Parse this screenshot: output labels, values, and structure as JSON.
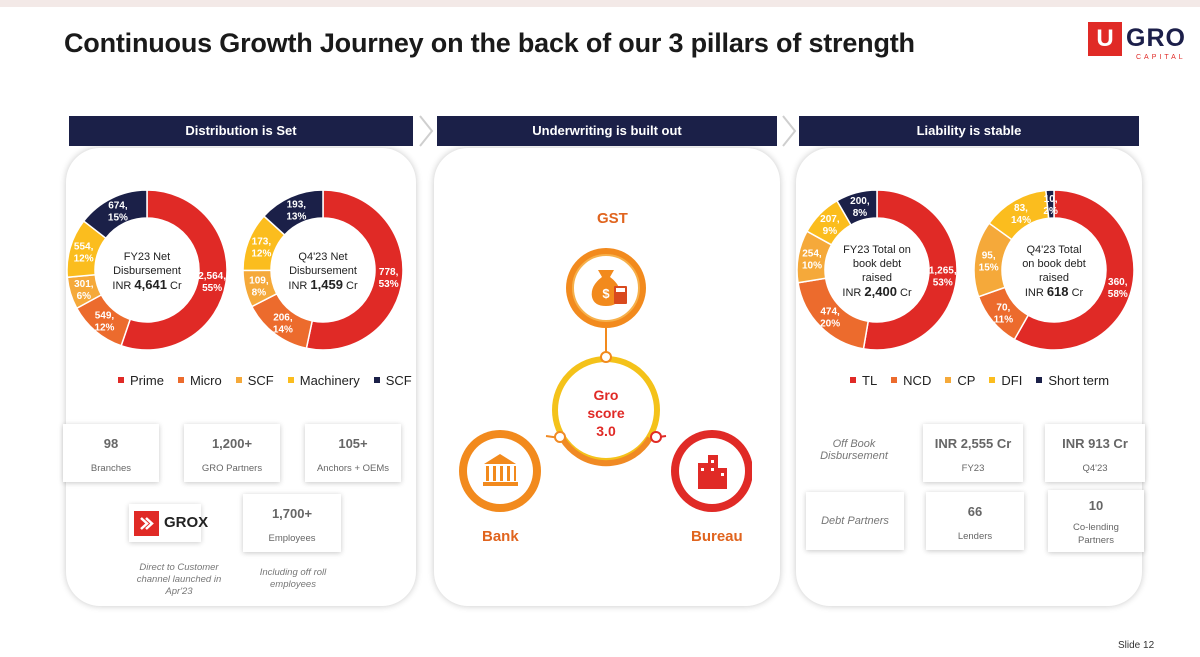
{
  "title": "Continuous Growth Journey on the back of our 3 pillars of strength",
  "logo": {
    "u": "U",
    "gro": "GRO",
    "capital": "CAPITAL"
  },
  "slide_number": "Slide 12",
  "colors": {
    "red": "#e02a26",
    "orange": "#ec6b2d",
    "light_orange": "#f5a93a",
    "yellow": "#fbbd1e",
    "navy": "#1b2048"
  },
  "pillars": [
    {
      "header": "Distribution is Set"
    },
    {
      "header": "Underwriting is built out"
    },
    {
      "header": "Liability is stable"
    }
  ],
  "chart_data": [
    {
      "type": "pie",
      "variant": "donut",
      "center_lines": [
        "FY23 Net",
        "Disbursement"
      ],
      "center_prefix": "INR ",
      "center_value": "4,641",
      "center_suffix": " Cr",
      "slices": [
        {
          "label": "Prime",
          "value": 2564,
          "text": "2,564,",
          "pct": "55%",
          "color": "#e02a26"
        },
        {
          "label": "Micro",
          "value": 549,
          "text": "549,",
          "pct": "12%",
          "color": "#ec6b2d"
        },
        {
          "label": "SCF",
          "value": 301,
          "text": "301,",
          "pct": "6%",
          "color": "#f5a93a"
        },
        {
          "label": "Machinery",
          "value": 554,
          "text": "554,",
          "pct": "12%",
          "color": "#fbbd1e"
        },
        {
          "label": "SCF",
          "value": 674,
          "text": "674,",
          "pct": "15%",
          "color": "#1b2048"
        }
      ]
    },
    {
      "type": "pie",
      "variant": "donut",
      "center_lines": [
        "Q4'23 Net",
        "Disbursement"
      ],
      "center_prefix": "INR ",
      "center_value": "1,459",
      "center_suffix": " Cr",
      "slices": [
        {
          "label": "Prime",
          "value": 778,
          "text": "778,",
          "pct": "53%",
          "color": "#e02a26"
        },
        {
          "label": "Micro",
          "value": 206,
          "text": "206,",
          "pct": "14%",
          "color": "#ec6b2d"
        },
        {
          "label": "SCF",
          "value": 109,
          "text": "109,",
          "pct": "8%",
          "color": "#f5a93a"
        },
        {
          "label": "Machinery",
          "value": 173,
          "text": "173,",
          "pct": "12%",
          "color": "#fbbd1e"
        },
        {
          "label": "SCF",
          "value": 193,
          "text": "193,",
          "pct": "13%",
          "color": "#1b2048"
        }
      ]
    },
    {
      "type": "pie",
      "variant": "donut",
      "center_lines": [
        "FY23 Total on",
        "book debt",
        "raised"
      ],
      "center_prefix": "INR ",
      "center_value": "2,400",
      "center_suffix": " Cr",
      "slices": [
        {
          "label": "TL",
          "value": 1265,
          "text": "1,265,",
          "pct": "53%",
          "color": "#e02a26"
        },
        {
          "label": "NCD",
          "value": 474,
          "text": "474,",
          "pct": "20%",
          "color": "#ec6b2d"
        },
        {
          "label": "CP",
          "value": 254,
          "text": "254,",
          "pct": "10%",
          "color": "#f5a93a"
        },
        {
          "label": "DFI",
          "value": 207,
          "text": "207,",
          "pct": "9%",
          "color": "#fbbd1e"
        },
        {
          "label": "Short term",
          "value": 200,
          "text": "200,",
          "pct": "8%",
          "color": "#1b2048"
        }
      ]
    },
    {
      "type": "pie",
      "variant": "donut",
      "center_lines": [
        "Q4'23 Total",
        "on book debt",
        "raised"
      ],
      "center_prefix": "INR ",
      "center_value": "618",
      "center_suffix": " Cr",
      "slices": [
        {
          "label": "TL",
          "value": 360,
          "text": "360,",
          "pct": "58%",
          "color": "#e02a26"
        },
        {
          "label": "NCD",
          "value": 70,
          "text": "70,",
          "pct": "11%",
          "color": "#ec6b2d"
        },
        {
          "label": "CP",
          "value": 95,
          "text": "95,",
          "pct": "15%",
          "color": "#f5a93a"
        },
        {
          "label": "DFI",
          "value": 83,
          "text": "83,",
          "pct": "14%",
          "color": "#fbbd1e"
        },
        {
          "label": "Short term",
          "value": 10,
          "text": "10,",
          "pct": "2%",
          "color": "#1b2048"
        }
      ]
    }
  ],
  "legend_left": [
    {
      "label": "Prime",
      "color": "#e02a26"
    },
    {
      "label": "Micro",
      "color": "#ec6b2d"
    },
    {
      "label": "SCF",
      "color": "#f5a93a"
    },
    {
      "label": "Machinery",
      "color": "#fbbd1e"
    },
    {
      "label": "SCF",
      "color": "#1b2048"
    }
  ],
  "legend_right": [
    {
      "label": "TL",
      "color": "#e02a26"
    },
    {
      "label": "NCD",
      "color": "#ec6b2d"
    },
    {
      "label": "CP",
      "color": "#f5a93a"
    },
    {
      "label": "DFI",
      "color": "#fbbd1e"
    },
    {
      "label": "Short term",
      "color": "#1b2048"
    }
  ],
  "distribution_stats": [
    {
      "value": "98",
      "label": "Branches"
    },
    {
      "value": "1,200+",
      "label": "GRO Partners"
    },
    {
      "value": "105+",
      "label": "Anchors + OEMs"
    },
    {
      "value": "1,700+",
      "label": "Employees"
    }
  ],
  "grox": {
    "text": "GROX",
    "note": "Direct to Customer channel launched in Apr'23"
  },
  "employees_note": "Including off roll employees",
  "underwriting": {
    "gst": "GST",
    "bank": "Bank",
    "bureau": "Bureau",
    "center_lines": [
      "Gro",
      "score",
      "3.0"
    ]
  },
  "liability_stats": [
    {
      "italic": "Off Book Disbursement"
    },
    {
      "value": "INR 2,555 Cr",
      "label": "FY23"
    },
    {
      "value": "INR 913 Cr",
      "label": "Q4'23"
    },
    {
      "italic": "Debt Partners"
    },
    {
      "value": "66",
      "label": "Lenders"
    },
    {
      "value": "10",
      "label": "Co-lending Partners"
    }
  ]
}
